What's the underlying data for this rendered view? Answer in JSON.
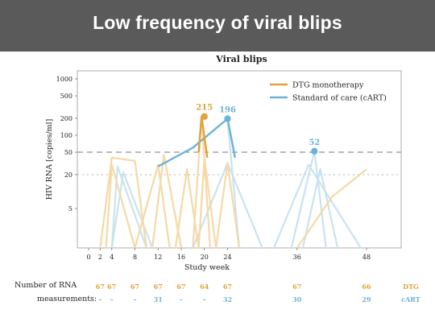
{
  "slide": {
    "title": "Low frequency of viral blips"
  },
  "colors": {
    "dtg": "#e0a23a",
    "dtg_light": "#f5d9a6",
    "cart": "#6bb3d9",
    "cart_light": "#c9e3f0",
    "ref50": "#aaaaaa",
    "ref20": "#c8c8c8"
  },
  "chart_data": {
    "type": "line",
    "title": "Viral blips",
    "xlabel": "Study week",
    "ylabel": "HIV RNA [copies/ml]",
    "y_scale": "log",
    "ylim": [
      1,
      1000
    ],
    "y_ticks": [
      5,
      20,
      50,
      100,
      200,
      500,
      1000
    ],
    "x_ticks": [
      0,
      2,
      4,
      8,
      12,
      16,
      20,
      24,
      36,
      48
    ],
    "xlim": [
      -1,
      51
    ],
    "reference_lines": [
      {
        "y": 50,
        "style": "dashed"
      },
      {
        "y": 20,
        "style": "dotted"
      }
    ],
    "legend": {
      "position": "top-right",
      "entries": [
        "DTG monotherapy",
        "Standard of care (cART)"
      ]
    },
    "series": [
      {
        "name": "DTG monotherapy",
        "peak": {
          "x": 20,
          "y": 215,
          "label": "215"
        },
        "blip_lines": [
          [
            [
              2,
              1
            ],
            [
              4,
              40
            ],
            [
              8,
              35
            ],
            [
              10,
              1
            ]
          ],
          [
            [
              3,
              1
            ],
            [
              4,
              30
            ],
            [
              8,
              1
            ]
          ],
          [
            [
              8,
              1
            ],
            [
              12,
              30
            ],
            [
              14,
              1
            ]
          ],
          [
            [
              11,
              1
            ],
            [
              13,
              45
            ],
            [
              16,
              1
            ]
          ],
          [
            [
              15,
              1
            ],
            [
              17,
              25
            ],
            [
              19,
              1
            ]
          ],
          [
            [
              19,
              1
            ],
            [
              20,
              40
            ],
            [
              22,
              1
            ]
          ],
          [
            [
              18,
              1
            ],
            [
              19.5,
              215
            ],
            [
              21,
              1
            ]
          ],
          [
            [
              22,
              1
            ],
            [
              24,
              32
            ],
            [
              26,
              1
            ]
          ],
          [
            [
              36,
              1
            ],
            [
              42,
              8
            ],
            [
              48,
              25
            ]
          ]
        ]
      },
      {
        "name": "Standard of care (cART)",
        "peak": {
          "x": 24,
          "y": 196,
          "label": "196"
        },
        "peak2": {
          "x": 39,
          "y": 52,
          "label": "52"
        },
        "blip_lines": [
          [
            [
              4,
              1
            ],
            [
              5,
              28
            ],
            [
              10,
              1
            ]
          ],
          [
            [
              4,
              1
            ],
            [
              6,
              22
            ],
            [
              11,
              1
            ]
          ],
          [
            [
              12,
              28
            ],
            [
              18,
              60
            ],
            [
              24,
              196
            ],
            [
              26,
              1
            ]
          ],
          [
            [
              18,
              1
            ],
            [
              24,
              32
            ],
            [
              30,
              1
            ]
          ],
          [
            [
              35,
              1
            ],
            [
              39,
              52
            ],
            [
              41,
              1
            ]
          ],
          [
            [
              37,
              1
            ],
            [
              40,
              25
            ],
            [
              43,
              1
            ]
          ],
          [
            [
              32,
              1
            ],
            [
              38,
              30
            ],
            [
              47,
              1
            ]
          ]
        ]
      }
    ]
  },
  "table": {
    "row1_label": "Number of RNA",
    "row2_label": "measurements:",
    "dtg_tag": "DTG",
    "cart_tag": "cART",
    "dtg_counts": [
      {
        "week": 2,
        "value": "67"
      },
      {
        "week": 4,
        "value": "67"
      },
      {
        "week": 8,
        "value": "67"
      },
      {
        "week": 12,
        "value": "67"
      },
      {
        "week": 16,
        "value": "67"
      },
      {
        "week": 20,
        "value": "64"
      },
      {
        "week": 24,
        "value": "67"
      },
      {
        "week": 36,
        "value": "67"
      },
      {
        "week": 48,
        "value": "66"
      }
    ],
    "cart_counts": [
      {
        "week": 2,
        "value": "–"
      },
      {
        "week": 4,
        "value": "–"
      },
      {
        "week": 8,
        "value": "–"
      },
      {
        "week": 12,
        "value": "31"
      },
      {
        "week": 16,
        "value": "–"
      },
      {
        "week": 20,
        "value": "–"
      },
      {
        "week": 24,
        "value": "32"
      },
      {
        "week": 36,
        "value": "30"
      },
      {
        "week": 48,
        "value": "29"
      }
    ]
  }
}
